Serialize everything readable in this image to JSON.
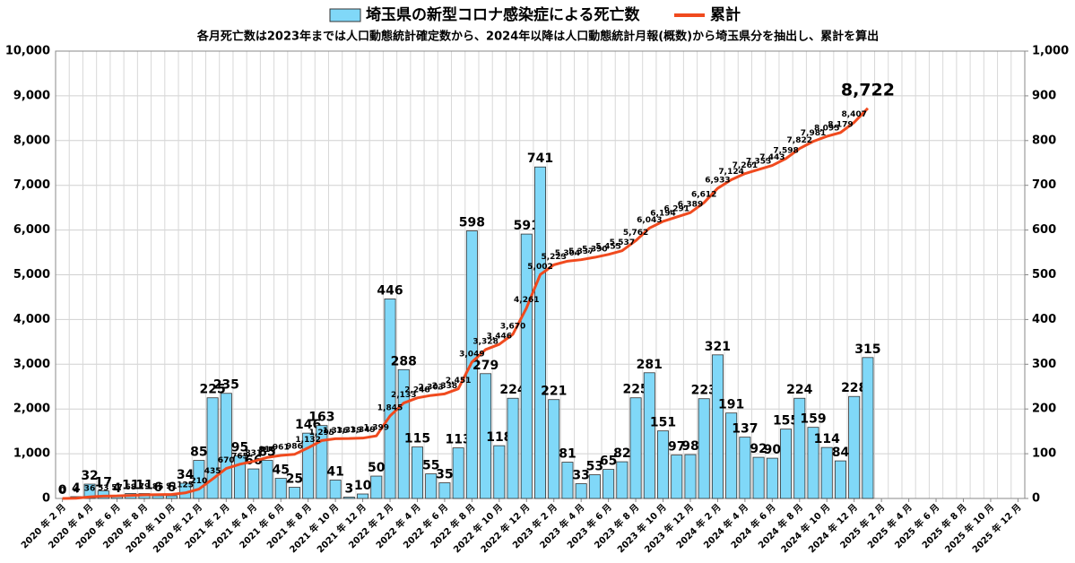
{
  "chart_data": {
    "type": "bar_line",
    "subtitle": "各月死亡数は2023年までは人口動態統計確定数から、2024年以降は人口動態統計月報(概数)から埼玉県分を抽出し、累計を算出",
    "categories": [
      "2020 年 2 月",
      null,
      "2020 年 4 月",
      null,
      "2020 年 6 月",
      null,
      "2020 年 8 月",
      null,
      "2020 年 10 月",
      null,
      "2020 年 12 月",
      null,
      "2021 年 2 月",
      null,
      "2021 年 4 月",
      null,
      "2021 年 6 月",
      null,
      "2021 年 8 月",
      null,
      "2021 年 10 月",
      null,
      "2021 年 12 月",
      null,
      "2022 年 2 月",
      null,
      "2022 年 4 月",
      null,
      "2022 年 6 月",
      null,
      "2022 年 8 月",
      null,
      "2022 年 10 月",
      null,
      "2022 年 12 月",
      null,
      "2023 年 2 月",
      null,
      "2023 年 4 月",
      null,
      "2023 年 6 月",
      null,
      "2023 年 8 月",
      null,
      "2023 年 10 月",
      null,
      "2023 年 12 月",
      null,
      "2024 年 2 月",
      null,
      "2024 年 4 月",
      null,
      "2024 年 6 月",
      null,
      "2024 年 8 月",
      null,
      "2024 年 10 月",
      null,
      "2024 年 12 月",
      null,
      "2025 年 2 月",
      null,
      "2025 年 4 月",
      null,
      "2025 年 6 月",
      null,
      "2025 年 8 月",
      null,
      "2025 年 10 月",
      null,
      "2025 年 12 月"
    ],
    "series": [
      {
        "name": "埼玉県の新型コロナ感染症による死亡数",
        "type": "bar",
        "axis": "y2",
        "color": "#80d8f8",
        "values": [
          0,
          4,
          32,
          17,
          4,
          11,
          11,
          6,
          6,
          34,
          85,
          225,
          235,
          95,
          66,
          85,
          45,
          25,
          146,
          163,
          41,
          3,
          10,
          50,
          446,
          288,
          115,
          55,
          35,
          113,
          598,
          279,
          118,
          224,
          591,
          741,
          221,
          81,
          33,
          53,
          65,
          82,
          225,
          281,
          151,
          97,
          98,
          223,
          321,
          191,
          137,
          92,
          90,
          155,
          224,
          159,
          114,
          84,
          228,
          315,
          null,
          null,
          null,
          null,
          null,
          null,
          null,
          null,
          null,
          null,
          null
        ]
      },
      {
        "name": "累計",
        "type": "line",
        "color": "#f04a1e",
        "values": [
          0,
          4,
          36,
          53,
          57,
          68,
          79,
          85,
          91,
          125,
          210,
          435,
          670,
          765,
          831,
          916,
          961,
          986,
          1132,
          1295,
          1336,
          1339,
          1349,
          1399,
          1845,
          2133,
          2248,
          2303,
          2338,
          2451,
          3049,
          3328,
          3446,
          3670,
          4261,
          5002,
          5223,
          5304,
          5337,
          5390,
          5455,
          5537,
          5762,
          6043,
          6194,
          6291,
          6389,
          6612,
          6933,
          7124,
          7261,
          7353,
          7443,
          7598,
          7822,
          7981,
          8095,
          8179,
          8407,
          8722,
          null,
          null,
          null,
          null,
          null,
          null,
          null,
          null,
          null,
          null,
          null
        ],
        "value_labels": [
          "0",
          "4",
          "36",
          "53",
          "57",
          "68",
          "79",
          "85",
          "91",
          "125",
          "210",
          "435",
          "670",
          "765",
          "831",
          "916",
          "961",
          "986",
          "1,132",
          "1,295",
          "1,336",
          "1,339",
          "1,349",
          "1,399",
          "1,845",
          "2,133",
          "2,248",
          "2,303",
          "2,338",
          "2,451",
          "3,049",
          "3,328",
          "3,446",
          "3,670",
          "4,261",
          "5,002",
          "5,223",
          "5,304",
          "5,337",
          "5,390",
          "5,455",
          "5,537",
          "5,762",
          "6,043",
          "6,194",
          "6,291",
          "6,389",
          "6,612",
          "6,933",
          "7,124",
          "7,261",
          "7,353",
          "7,443",
          "7,598",
          "7,822",
          "7,981",
          "8,095",
          "8,179",
          "8,407",
          "8,722",
          null,
          null,
          null,
          null,
          null,
          null,
          null,
          null,
          null,
          null,
          null
        ]
      }
    ],
    "ylim": [
      0,
      10000
    ],
    "yticks": [
      0,
      {
        "value": 1000,
        "label": "1,000"
      },
      {
        "value": 2000,
        "label": "2,000"
      },
      {
        "value": 3000,
        "label": "3,000"
      },
      {
        "value": 4000,
        "label": "4,000"
      },
      {
        "value": 5000,
        "label": "5,000"
      },
      {
        "value": 6000,
        "label": "6,000"
      },
      {
        "value": 7000,
        "label": "7,000"
      },
      {
        "value": 8000,
        "label": "8,000"
      },
      {
        "value": 9000,
        "label": "9,000"
      },
      {
        "value": 10000,
        "label": "10,000"
      }
    ],
    "y2lim": [
      0,
      1000
    ],
    "y2ticks": [
      0,
      100,
      200,
      300,
      400,
      500,
      600,
      700,
      800,
      900,
      {
        "value": 1000,
        "label": "1,000"
      }
    ],
    "grid": true,
    "legend": "top"
  }
}
